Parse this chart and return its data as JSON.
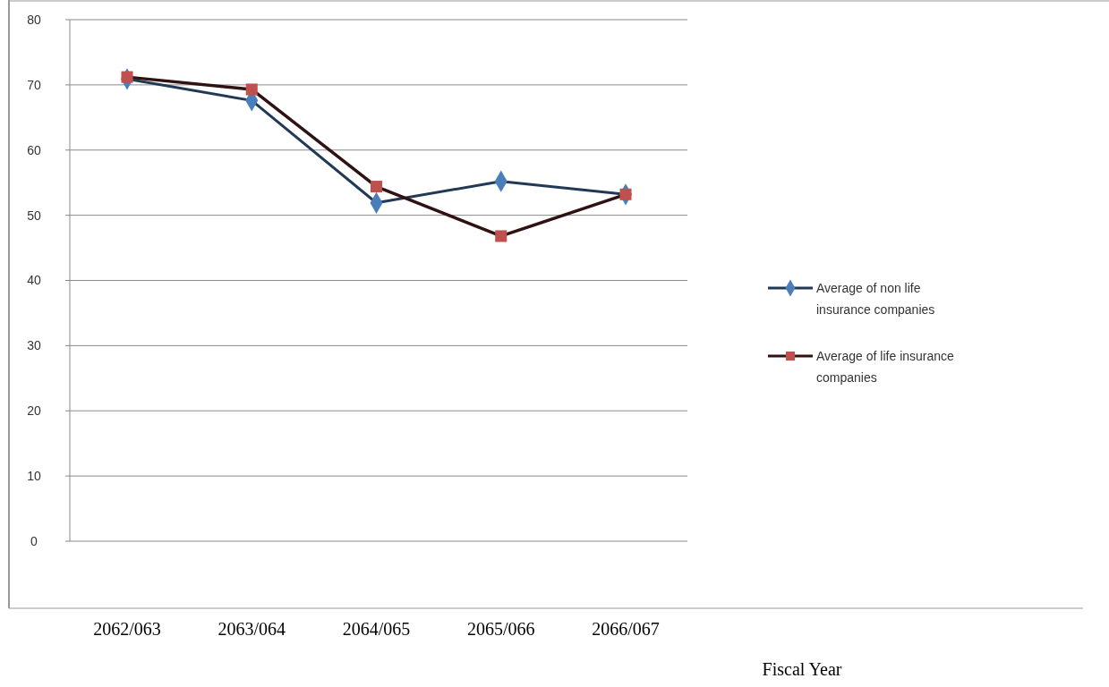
{
  "chart_data": {
    "type": "line",
    "xlabel": "Fiscal Year",
    "categories": [
      "2062/063",
      "2063/064",
      "2064/065",
      "2065/066",
      "2066/067"
    ],
    "series": [
      {
        "name": "Average of non life insurance companies",
        "color": "#4a7ebb",
        "marker": "diamond",
        "values": [
          70.9,
          67.6,
          51.9,
          55.2,
          53.2
        ]
      },
      {
        "name": "Average of life insurance companies",
        "color": "#c0504d",
        "marker": "square",
        "values": [
          71.2,
          69.3,
          54.4,
          46.8,
          53.2
        ]
      }
    ],
    "ylim": [
      0,
      80
    ],
    "yticks": [
      0,
      10,
      20,
      30,
      40,
      50,
      60,
      70,
      80
    ],
    "grid": "y",
    "legend": "right"
  }
}
